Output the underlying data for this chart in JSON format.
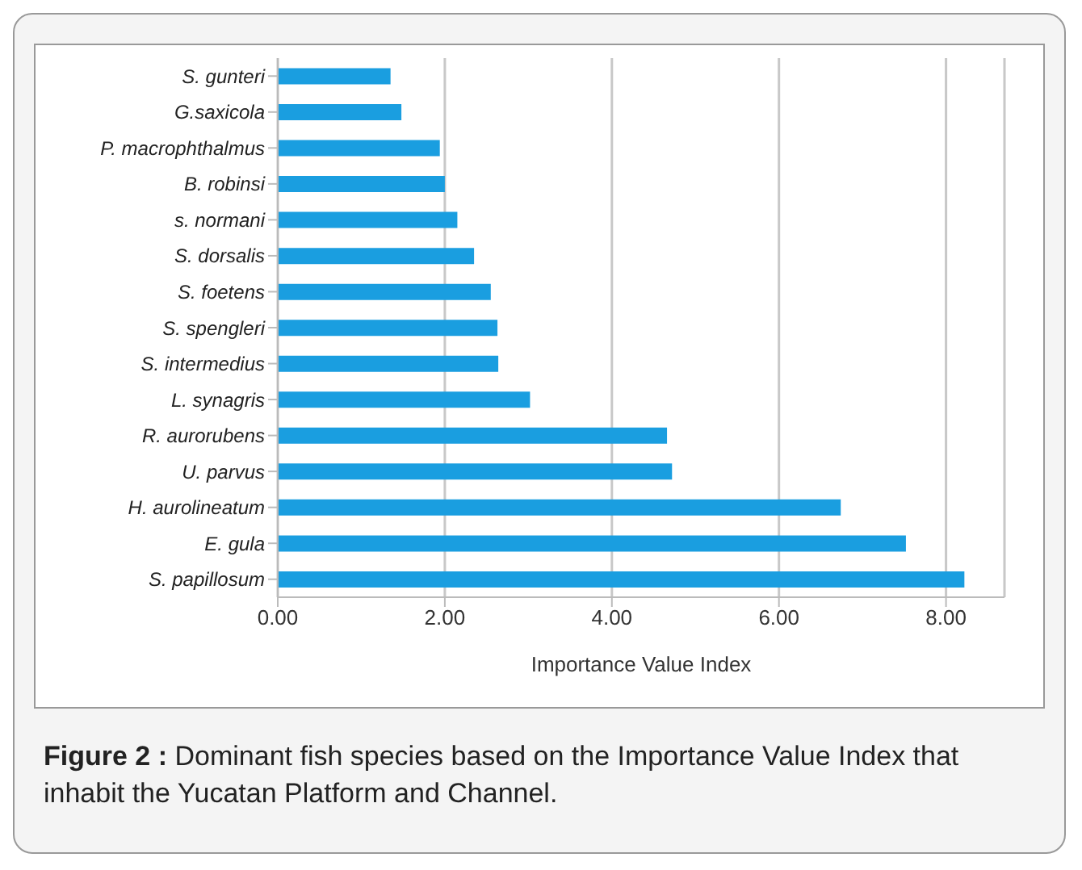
{
  "chart_data": {
    "type": "bar",
    "orientation": "horizontal",
    "xlabel": "Importance Value Index",
    "categories": [
      "S. gunteri",
      "G.saxicola",
      "P. macrophthalmus",
      "B. robinsi",
      "s. normani",
      "S. dorsalis",
      "S. foetens",
      "S. spengleri",
      "S. intermedius",
      "L. synagris",
      "R. aurorubens",
      "U. parvus",
      "H. aurolineatum",
      "E. gula",
      "S. papillosum"
    ],
    "values": [
      1.35,
      1.48,
      1.94,
      2.0,
      2.15,
      2.35,
      2.55,
      2.63,
      2.64,
      3.02,
      4.66,
      4.72,
      6.74,
      7.52,
      8.22
    ],
    "color": "#1a9ee0",
    "xlim": [
      0,
      8.7
    ],
    "xticks": [
      {
        "value": 0,
        "label": "0.00"
      },
      {
        "value": 2,
        "label": "2.00"
      },
      {
        "value": 4,
        "label": "4.00"
      },
      {
        "value": 6,
        "label": "6.00"
      },
      {
        "value": 8,
        "label": "8.00"
      }
    ],
    "grid": "x",
    "annotations": [
      "**Figure 2 :** Dominant fish species based on the Importance Value Index that inhabit the Yucatan Platform and Channel."
    ]
  }
}
